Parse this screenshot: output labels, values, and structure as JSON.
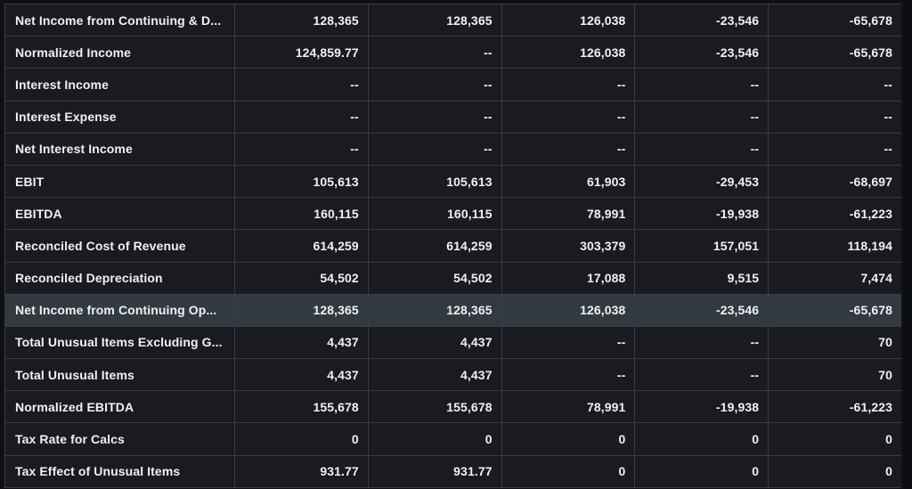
{
  "table": {
    "rows": [
      {
        "label": "Net Income from Continuing & D...",
        "values": [
          "128,365",
          "128,365",
          "126,038",
          "-23,546",
          "-65,678"
        ]
      },
      {
        "label": "Normalized Income",
        "values": [
          "124,859.77",
          "--",
          "126,038",
          "-23,546",
          "-65,678"
        ]
      },
      {
        "label": "Interest Income",
        "values": [
          "--",
          "--",
          "--",
          "--",
          "--"
        ]
      },
      {
        "label": "Interest Expense",
        "values": [
          "--",
          "--",
          "--",
          "--",
          "--"
        ]
      },
      {
        "label": "Net Interest Income",
        "values": [
          "--",
          "--",
          "--",
          "--",
          "--"
        ]
      },
      {
        "label": "EBIT",
        "values": [
          "105,613",
          "105,613",
          "61,903",
          "-29,453",
          "-68,697"
        ]
      },
      {
        "label": "EBITDA",
        "values": [
          "160,115",
          "160,115",
          "78,991",
          "-19,938",
          "-61,223"
        ]
      },
      {
        "label": "Reconciled Cost of Revenue",
        "values": [
          "614,259",
          "614,259",
          "303,379",
          "157,051",
          "118,194"
        ]
      },
      {
        "label": "Reconciled Depreciation",
        "values": [
          "54,502",
          "54,502",
          "17,088",
          "9,515",
          "7,474"
        ]
      },
      {
        "label": "Net Income from Continuing Op...",
        "values": [
          "128,365",
          "128,365",
          "126,038",
          "-23,546",
          "-65,678"
        ],
        "highlighted": true
      },
      {
        "label": "Total Unusual Items Excluding G...",
        "values": [
          "4,437",
          "4,437",
          "--",
          "--",
          "70"
        ]
      },
      {
        "label": "Total Unusual Items",
        "values": [
          "4,437",
          "4,437",
          "--",
          "--",
          "70"
        ]
      },
      {
        "label": "Normalized EBITDA",
        "values": [
          "155,678",
          "155,678",
          "78,991",
          "-19,938",
          "-61,223"
        ]
      },
      {
        "label": "Tax Rate for Calcs",
        "values": [
          "0",
          "0",
          "0",
          "0",
          "0"
        ]
      },
      {
        "label": "Tax Effect of Unusual Items",
        "values": [
          "931.77",
          "931.77",
          "0",
          "0",
          "0"
        ]
      }
    ]
  },
  "colors": {
    "background": "#0f1014",
    "cell": "#191b21",
    "highlight_row": "#333a3f",
    "border": "#3a3d44",
    "text": "#eef0f3"
  }
}
